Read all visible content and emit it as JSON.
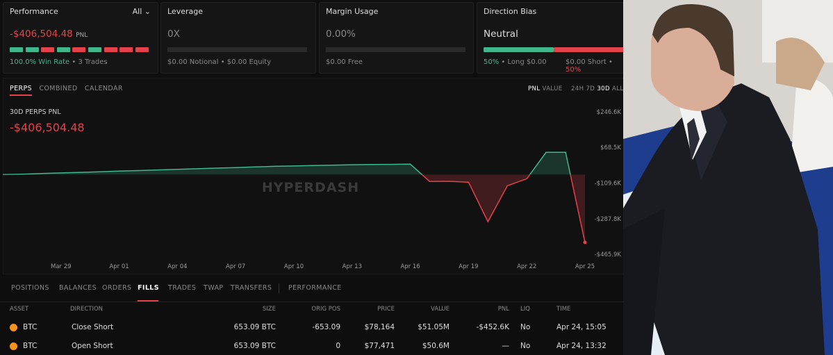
{
  "cards": [
    {
      "title": "Performance",
      "filter": "All",
      "value": "-$406,504.48",
      "unit": "PNL",
      "footer": [
        "100.0% Win Rate",
        "• 3 Trades"
      ]
    },
    {
      "title": "Leverage",
      "value": "0X",
      "footer": [
        "$0.00 Notional • $0.00 Equity"
      ]
    },
    {
      "title": "Margin Usage",
      "value": "0.00%",
      "footer": [
        "$0.00 Free"
      ]
    },
    {
      "title": "Direction Bias",
      "value": "Neutral",
      "footer": [
        "50%",
        "• Long $0.00",
        "$0.00 Short •",
        "50%"
      ]
    }
  ],
  "chart_tabs": [
    "PERPS",
    "COMBINED",
    "CALENDAR"
  ],
  "metric_tabs": [
    "PNL",
    "VALUE"
  ],
  "range_tabs": [
    "24H",
    "7D",
    "30D",
    "ALL"
  ],
  "chart_data": {
    "type": "line",
    "title": "30D PERPS PNL",
    "value_label": "-$406,504.48",
    "watermark": "HYPERDASH",
    "x": [
      "Mar 26",
      "Mar 27",
      "Mar 28",
      "Mar 29",
      "Mar 30",
      "Mar 31",
      "Apr 01",
      "Apr 02",
      "Apr 03",
      "Apr 04",
      "Apr 05",
      "Apr 06",
      "Apr 07",
      "Apr 08",
      "Apr 09",
      "Apr 10",
      "Apr 11",
      "Apr 12",
      "Apr 13",
      "Apr 14",
      "Apr 15",
      "Apr 16",
      "Apr 17",
      "Apr 18",
      "Apr 19",
      "Apr 20",
      "Apr 21",
      "Apr 22",
      "Apr 23",
      "Apr 24",
      "Apr 25"
    ],
    "values": [
      -67000,
      -65000,
      -62000,
      -59000,
      -56000,
      -53000,
      -50000,
      -47000,
      -44000,
      -41000,
      -38000,
      -35000,
      -32000,
      -29000,
      -26000,
      -24000,
      -22000,
      -20000,
      -18000,
      -17000,
      -16000,
      -15000,
      -102000,
      -101000,
      -105000,
      -303000,
      -123000,
      -88000,
      44000,
      44000,
      -406500
    ],
    "color_up": "#3fb68b",
    "color_down": "#e5414b",
    "xticks": [
      "Mar 29",
      "Apr 01",
      "Apr 04",
      "Apr 07",
      "Apr 10",
      "Apr 13",
      "Apr 16",
      "Apr 19",
      "Apr 22",
      "Apr 25"
    ],
    "ylim": [
      -465900,
      246600
    ],
    "yticks": [
      {
        "value": 246600,
        "label": "$246.6K"
      },
      {
        "value": 68500,
        "label": "$68.5K"
      },
      {
        "value": -109600,
        "label": "-$109.6K"
      },
      {
        "value": -287800,
        "label": "-$287.8K"
      },
      {
        "value": -465900,
        "label": "-$465.9K"
      }
    ]
  },
  "bottom_tabs": [
    "POSITIONS",
    "BALANCES",
    "ORDERS",
    "FILLS",
    "TRADES",
    "TWAP",
    "TRANSFERS",
    "PERFORMANCE"
  ],
  "table": {
    "headers": [
      "ASSET",
      "DIRECTION",
      "SIZE",
      "ORIG POS",
      "PRICE",
      "VALUE",
      "PNL",
      "LIQ",
      "TIME"
    ],
    "rows": [
      [
        "BTC",
        "Close Short",
        "653.09 BTC",
        "-653.09",
        "$78,164",
        "$51.05M",
        "-$452.6K",
        "No",
        "Apr 24, 15:05"
      ],
      [
        "BTC",
        "Open Short",
        "653.09 BTC",
        "0",
        "$77,471",
        "$50.6M",
        "—",
        "No",
        "Apr 24, 13:32"
      ]
    ]
  }
}
